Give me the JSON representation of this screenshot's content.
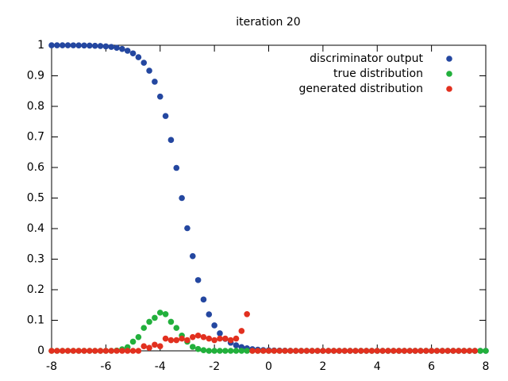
{
  "chart_data": {
    "type": "scatter",
    "title": "iteration 20",
    "x": [
      -8,
      -7.8,
      -7.6,
      -7.4,
      -7.2,
      -7,
      -6.8,
      -6.6,
      -6.4,
      -6.2,
      -6,
      -5.8,
      -5.6,
      -5.4,
      -5.2,
      -5,
      -4.8,
      -4.6,
      -4.4,
      -4.2,
      -4,
      -3.8,
      -3.6,
      -3.4,
      -3.2,
      -3,
      -2.8,
      -2.6,
      -2.4,
      -2.2,
      -2,
      -1.8,
      -1.6,
      -1.4,
      -1.2,
      -1,
      -0.8,
      -0.6,
      -0.4,
      -0.2,
      0,
      0.2,
      0.4,
      0.6,
      0.8,
      1,
      1.2,
      1.4,
      1.6,
      1.8,
      2,
      2.2,
      2.4,
      2.6,
      2.8,
      3,
      3.2,
      3.4,
      3.6,
      3.8,
      4,
      4.2,
      4.4,
      4.6,
      4.8,
      5,
      5.2,
      5.4,
      5.6,
      5.8,
      6,
      6.2,
      6.4,
      6.6,
      6.8,
      7,
      7.2,
      7.4,
      7.6,
      7.8,
      8
    ],
    "series": [
      {
        "name": "discriminator output",
        "color": "#2447a0",
        "values": [
          0.9999,
          0.9999,
          0.9998,
          0.9998,
          0.9997,
          0.9995,
          0.9993,
          0.9989,
          0.9983,
          0.9975,
          0.9963,
          0.9945,
          0.9918,
          0.9879,
          0.982,
          0.9734,
          0.9608,
          0.9427,
          0.9168,
          0.8808,
          0.832,
          0.7685,
          0.69,
          0.5987,
          0.5,
          0.4013,
          0.31,
          0.2315,
          0.168,
          0.1192,
          0.0832,
          0.0573,
          0.0392,
          0.0266,
          0.018,
          0.0121,
          0.0082,
          0.0055,
          0.0037,
          0.0025,
          0.0017,
          0.0011,
          0.0007,
          0.0005,
          0.0003,
          0,
          0,
          0,
          0,
          0,
          0,
          0,
          0,
          0,
          0,
          0,
          0,
          0,
          0,
          0,
          0,
          0,
          0,
          0,
          0,
          0,
          0,
          0,
          0,
          0,
          0,
          0,
          0,
          0,
          0,
          0,
          0,
          0,
          0,
          0,
          0
        ]
      },
      {
        "name": "true distribution",
        "color": "#22b03c",
        "values": [
          0,
          0,
          0,
          0,
          0,
          0,
          0,
          0,
          0,
          0,
          0,
          0,
          0.001,
          0.005,
          0.012,
          0.03,
          0.045,
          0.075,
          0.095,
          0.108,
          0.125,
          0.12,
          0.095,
          0.075,
          0.05,
          0.03,
          0.013,
          0.006,
          0.002,
          0,
          0,
          0,
          0,
          0,
          0,
          0,
          0,
          0,
          0,
          0,
          0,
          0,
          0,
          0,
          0,
          0,
          0,
          0,
          0,
          0,
          0,
          0,
          0,
          0,
          0,
          0,
          0,
          0,
          0,
          0,
          0,
          0,
          0,
          0,
          0,
          0,
          0,
          0,
          0,
          0,
          0,
          0,
          0,
          0,
          0,
          0,
          0,
          0,
          0,
          0,
          0
        ]
      },
      {
        "name": "generated distribution",
        "color": "#e2301f",
        "values": [
          0,
          0,
          0,
          0,
          0,
          0,
          0,
          0,
          0,
          0,
          0,
          0,
          0,
          0,
          0,
          0,
          0,
          0.015,
          0.01,
          0.02,
          0.015,
          0.04,
          0.035,
          0.035,
          0.04,
          0.035,
          0.045,
          0.05,
          0.045,
          0.04,
          0.035,
          0.04,
          0.04,
          0.035,
          0.04,
          0.065,
          0.12,
          0,
          0,
          0,
          0,
          0,
          0,
          0,
          0,
          0,
          0,
          0,
          0,
          0,
          0,
          0,
          0,
          0,
          0,
          0,
          0,
          0,
          0,
          0,
          0,
          0,
          0,
          0,
          0,
          0,
          0,
          0,
          0,
          0,
          0,
          0,
          0,
          0,
          0,
          0,
          0,
          0,
          0
        ]
      }
    ],
    "xlim": [
      -8,
      8
    ],
    "xticks": [
      -8,
      -6,
      -4,
      -2,
      0,
      2,
      4,
      6,
      8
    ],
    "ylim": [
      0,
      1
    ],
    "yticks": [
      0,
      0.1,
      0.2,
      0.3,
      0.4,
      0.5,
      0.6,
      0.7,
      0.8,
      0.9,
      1
    ],
    "legend": "top-right"
  }
}
